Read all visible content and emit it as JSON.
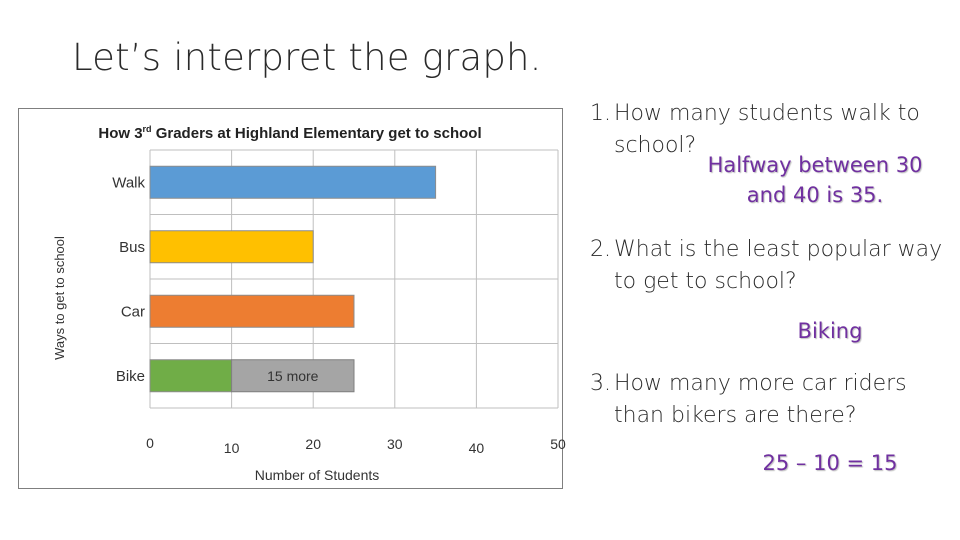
{
  "slide": {
    "title": "Let’s interpret the graph."
  },
  "colors": {
    "walk": "#5b9bd5",
    "bus": "#ffc000",
    "car": "#ed7d31",
    "bike": "#70ad47",
    "more": "#a5a5a5",
    "answer": "#7030a0"
  },
  "questions": [
    {
      "number": "1.",
      "text": "How many students walk to school?",
      "answer": "Halfway between 30 and 40 is 35."
    },
    {
      "number": "2.",
      "text": "What is the least popular way to get to school?",
      "answer": "Biking"
    },
    {
      "number": "3.",
      "text": "How many more car riders than bikers are there?",
      "answer": "25 – 10 = 15"
    }
  ],
  "chart_data": {
    "type": "bar",
    "orientation": "horizontal",
    "title_prefix": "How 3",
    "title_sup": "rd",
    "title_suffix": " Graders at Highland Elementary get to school",
    "xlabel": "Number of Students",
    "ylabel": "Ways to get to school",
    "categories": [
      "Walk",
      "Bus",
      "Car",
      "Bike"
    ],
    "values": [
      35,
      20,
      25,
      10
    ],
    "annotation": {
      "category": "Bike",
      "from": 10,
      "to": 25,
      "label": "15 more"
    },
    "xlim": [
      0,
      50
    ],
    "xticks": [
      0,
      10,
      20,
      30,
      40,
      50
    ],
    "xtick_labels": [
      "0",
      "10",
      "20",
      "30",
      "40",
      "50"
    ],
    "grid": true
  }
}
